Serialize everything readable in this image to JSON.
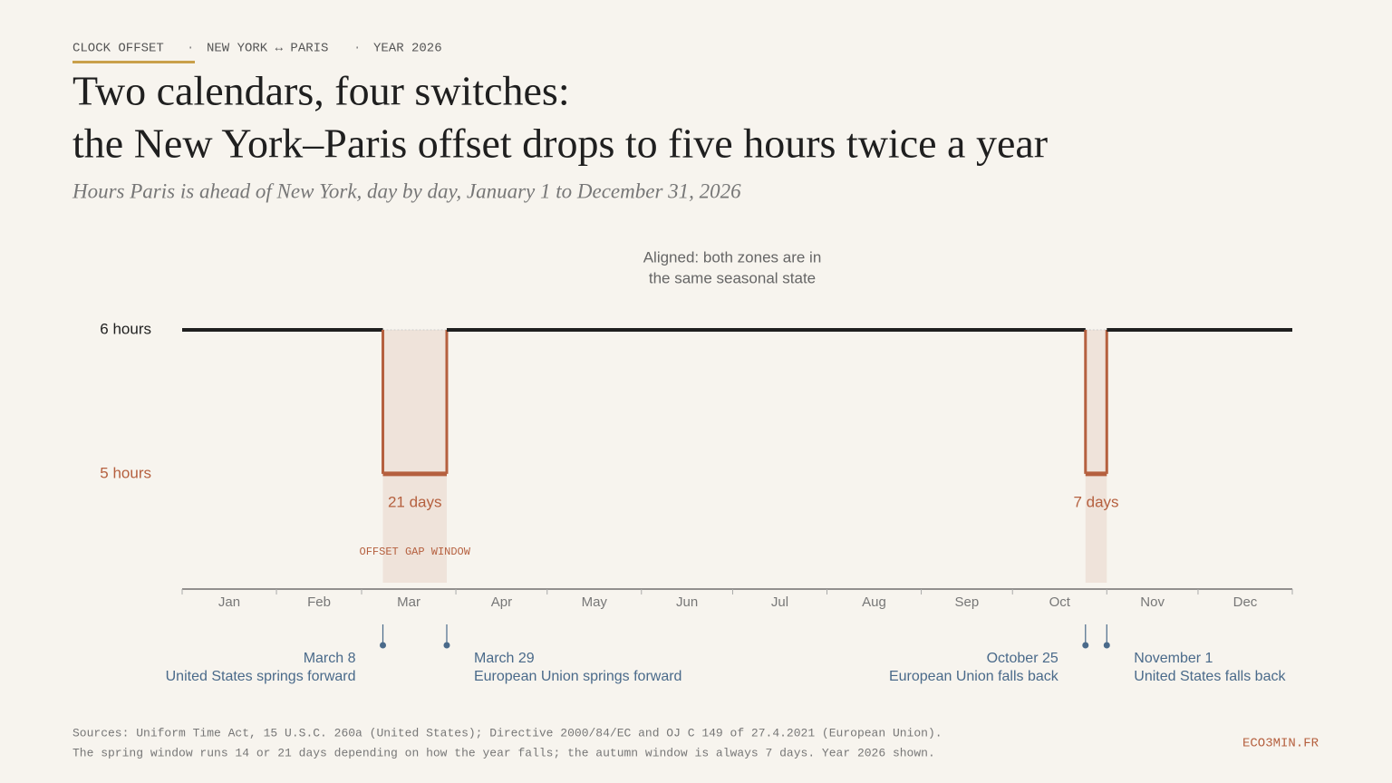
{
  "kicker": [
    "CLOCK OFFSET",
    "NEW YORK ↔ PARIS",
    "YEAR 2026"
  ],
  "chart_data": {
    "type": "step",
    "title": [
      "Two calendars, four switches:",
      "the New York–Paris offset drops to five hours twice a year"
    ],
    "subtitle": "Hours Paris is ahead of New York, day by day, January 1 to December 31, 2026",
    "annotation": [
      "Aligned: both zones are in",
      "the same seasonal state"
    ],
    "x": [
      0,
      66,
      87,
      297,
      304
    ],
    "values": [
      6,
      5,
      6,
      5,
      6
    ],
    "color": "#1f1f1f",
    "gap_color": "#b5603f",
    "xlim": [
      0,
      365
    ],
    "xticks": [
      {
        "value": 0,
        "label": "Jan"
      },
      {
        "value": 31,
        "label": "Feb"
      },
      {
        "value": 59,
        "label": "Mar"
      },
      {
        "value": 90,
        "label": "Apr"
      },
      {
        "value": 120,
        "label": "May"
      },
      {
        "value": 151,
        "label": "Jun"
      },
      {
        "value": 181,
        "label": "Jul"
      },
      {
        "value": 212,
        "label": "Aug"
      },
      {
        "value": 243,
        "label": "Sep"
      },
      {
        "value": 273,
        "label": "Oct"
      },
      {
        "value": 304,
        "label": "Nov"
      },
      {
        "value": 334,
        "label": "Dec"
      }
    ],
    "ylim": [
      4.2,
      6
    ],
    "yticks": [
      {
        "value": 6,
        "label": "6 hours"
      },
      {
        "value": 5,
        "label": "5 hours"
      }
    ],
    "windows": [
      {
        "start": 66,
        "end": 87,
        "label": "21 days"
      },
      {
        "start": 297,
        "end": 304,
        "label": "7 days"
      }
    ],
    "window_label": "OFFSET GAP WINDOW",
    "events": [
      {
        "x": 66,
        "date": "March 8",
        "label": "United States springs forward"
      },
      {
        "x": 87,
        "date": "March 29",
        "label": "European Union springs forward"
      },
      {
        "x": 297,
        "date": "October 25",
        "label": "European Union falls back"
      },
      {
        "x": 304,
        "date": "November 1",
        "label": "United States falls back"
      }
    ]
  },
  "footer": {
    "sources": [
      "Sources: Uniform Time Act, 15 U.S.C. 260a (United States); Directive 2000/84/EC and OJ C 149 of 27.4.2021 (European Union).",
      "The spring window runs 14 or 21 days depending on how the year falls; the autumn window is always 7 days. Year 2026 shown."
    ],
    "brand": "ECO3MIN.FR"
  }
}
